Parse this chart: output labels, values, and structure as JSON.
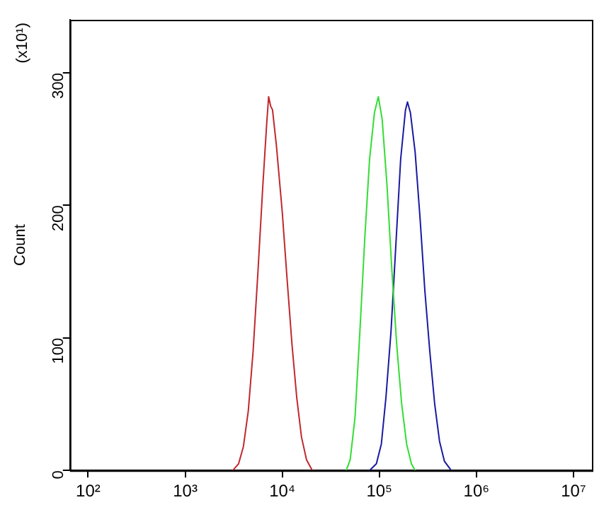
{
  "chart_data": {
    "type": "line",
    "ylabel": "Count",
    "annotations": [
      "(x10¹)"
    ],
    "xlim": [
      65,
      15500000
    ],
    "ylim": [
      0,
      340
    ],
    "xticks": [
      {
        "value": 100,
        "label": "10²"
      },
      {
        "value": 1000,
        "label": "10³"
      },
      {
        "value": 10000,
        "label": "10⁴"
      },
      {
        "value": 100000,
        "label": "10⁵"
      },
      {
        "value": 1000000,
        "label": "10⁶"
      },
      {
        "value": 10000000,
        "label": "10⁷"
      }
    ],
    "yticks": [
      0,
      100,
      200,
      300
    ],
    "log": "x",
    "grid": false,
    "legend": false,
    "marker": "none",
    "line_style": "solid",
    "series": [
      {
        "color": "#c0282d",
        "x": [
          3090,
          3550,
          3980,
          4470,
          5010,
          5620,
          6310,
          6920,
          7240,
          7590,
          7940,
          8710,
          10000,
          11200,
          12600,
          14100,
          15800,
          17800,
          20400
        ],
        "values": [
          0,
          5,
          18,
          45,
          90,
          150,
          215,
          262,
          282,
          275,
          272,
          245,
          195,
          145,
          95,
          55,
          25,
          8,
          0
        ]
      },
      {
        "color": "#33dd33",
        "x": [
          45700,
          50100,
          56200,
          63100,
          70800,
          79400,
          89100,
          97700,
          107000,
          120000,
          135000,
          151000,
          170000,
          191000,
          214000,
          234000
        ],
        "values": [
          0,
          8,
          40,
          105,
          175,
          235,
          270,
          282,
          265,
          215,
          150,
          95,
          50,
          20,
          5,
          0
        ]
      },
      {
        "color": "#1a1aa0",
        "x": [
          79400,
          93300,
          105000,
          117000,
          132000,
          148000,
          166000,
          186000,
          195000,
          209000,
          234000,
          263000,
          295000,
          331000,
          372000,
          417000,
          468000,
          550000
        ],
        "values": [
          0,
          5,
          20,
          55,
          105,
          170,
          235,
          272,
          278,
          270,
          240,
          190,
          135,
          90,
          50,
          22,
          7,
          0
        ]
      }
    ]
  }
}
